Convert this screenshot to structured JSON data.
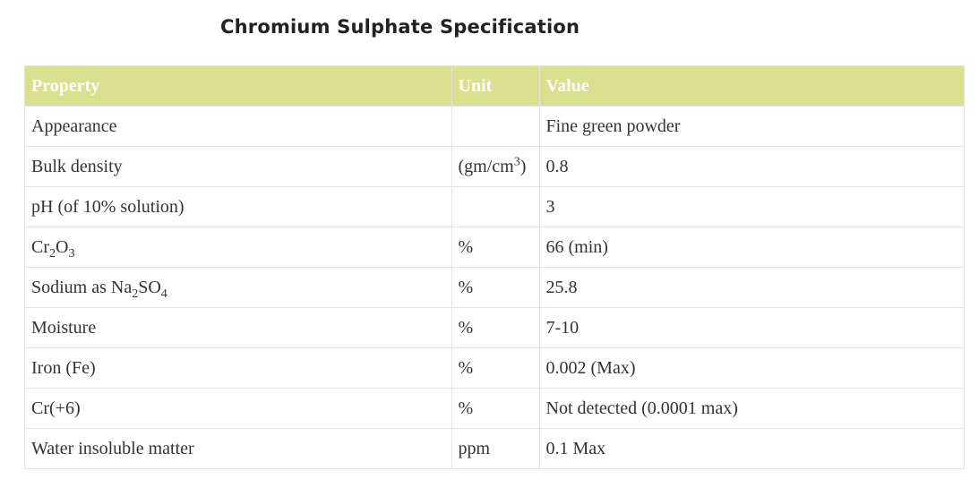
{
  "page": {
    "title": "Chromium Sulphate Specification"
  },
  "table": {
    "headers": {
      "property": "Property",
      "unit": "Unit",
      "value": "Value"
    },
    "rows": [
      {
        "property": [
          {
            "t": "Appearance"
          }
        ],
        "unit": [
          {
            "t": ""
          }
        ],
        "value": "Fine green powder"
      },
      {
        "property": [
          {
            "t": "Bulk density"
          }
        ],
        "unit": [
          {
            "t": "(gm/cm"
          },
          {
            "t": "3",
            "sup": true
          },
          {
            "t": ")"
          }
        ],
        "value": "0.8"
      },
      {
        "property": [
          {
            "t": "pH (of 10% solution)"
          }
        ],
        "unit": [
          {
            "t": ""
          }
        ],
        "value": "3"
      },
      {
        "property": [
          {
            "t": "Cr"
          },
          {
            "t": "2",
            "sub": true
          },
          {
            "t": "O"
          },
          {
            "t": "3",
            "sub": true
          }
        ],
        "unit": [
          {
            "t": "%"
          }
        ],
        "value": "66 (min)"
      },
      {
        "property": [
          {
            "t": "Sodium as Na"
          },
          {
            "t": "2",
            "sub": true
          },
          {
            "t": "SO"
          },
          {
            "t": "4",
            "sub": true
          }
        ],
        "unit": [
          {
            "t": "%"
          }
        ],
        "value": "25.8"
      },
      {
        "property": [
          {
            "t": "Moisture"
          }
        ],
        "unit": [
          {
            "t": "%"
          }
        ],
        "value": "7-10"
      },
      {
        "property": [
          {
            "t": "Iron (Fe)"
          }
        ],
        "unit": [
          {
            "t": "%"
          }
        ],
        "value": "0.002 (Max)"
      },
      {
        "property": [
          {
            "t": "Cr(+6)"
          }
        ],
        "unit": [
          {
            "t": "%"
          }
        ],
        "value": "Not detected (0.0001 max)"
      },
      {
        "property": [
          {
            "t": "Water insoluble matter"
          }
        ],
        "unit": [
          {
            "t": "ppm"
          }
        ],
        "value": "0.1 Max"
      }
    ]
  }
}
